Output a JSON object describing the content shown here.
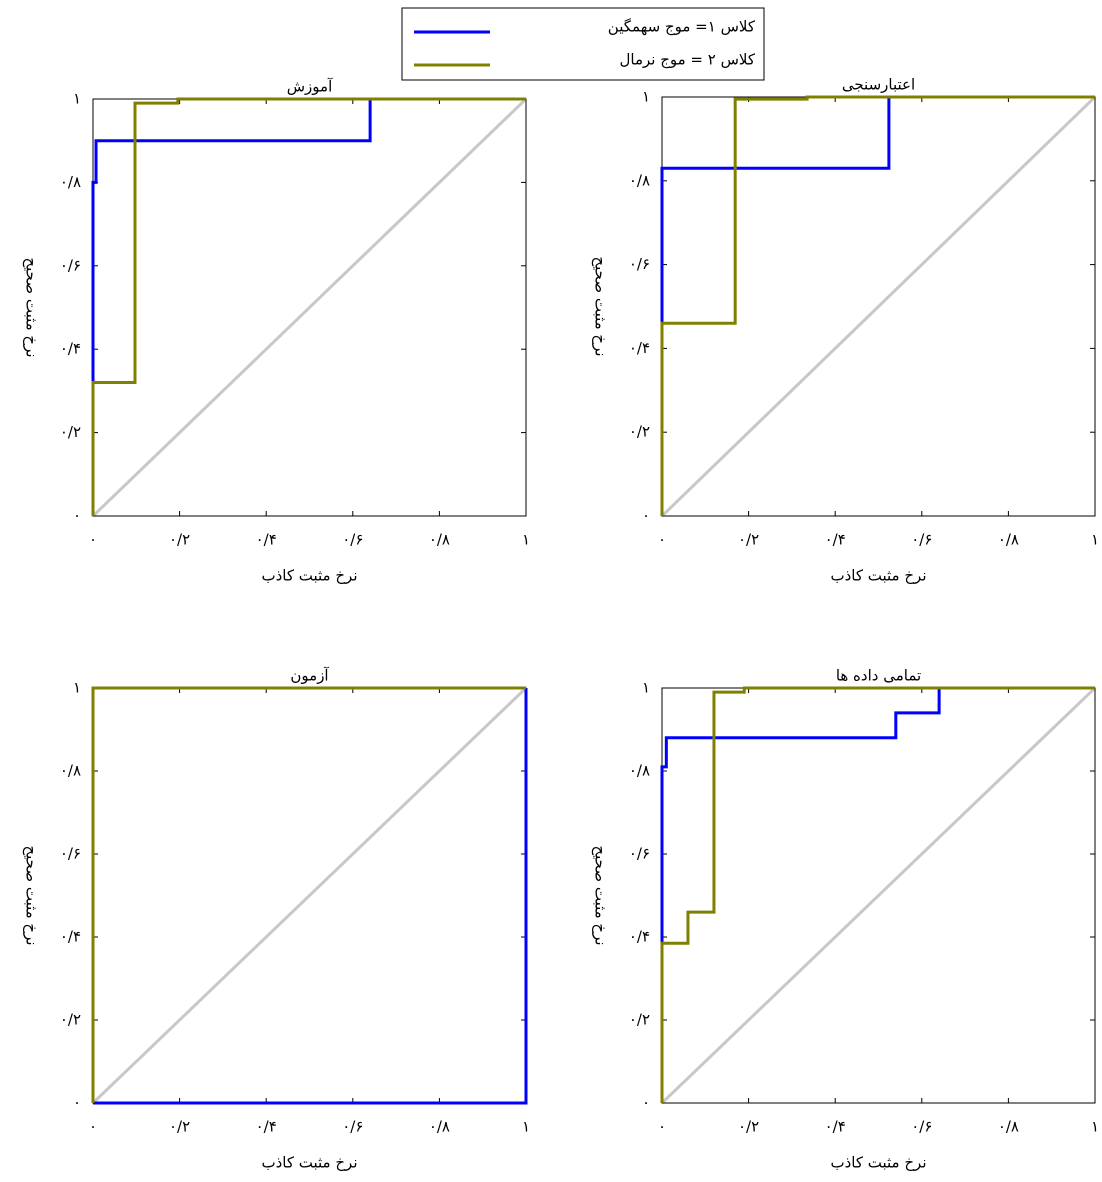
{
  "chart_data": [
    {
      "type": "line",
      "title": "آموزش",
      "xlabel": "نرخ مثبت کاذب",
      "ylabel": "نرخ مثبت صحیح",
      "xlim": [
        0,
        1
      ],
      "ylim": [
        0,
        1
      ],
      "xticks": [
        {
          "value": 0,
          "label": "۰"
        },
        {
          "value": 0.2,
          "label": "۰/۲"
        },
        {
          "value": 0.4,
          "label": "۰/۴"
        },
        {
          "value": 0.6,
          "label": "۰/۶"
        },
        {
          "value": 0.8,
          "label": "۰/۸"
        },
        {
          "value": 1,
          "label": "۱"
        }
      ],
      "yticks": [
        {
          "value": 0,
          "label": "۰"
        },
        {
          "value": 0.2,
          "label": "۰/۲"
        },
        {
          "value": 0.4,
          "label": "۰/۴"
        },
        {
          "value": 0.6,
          "label": "۰/۶"
        },
        {
          "value": 0.8,
          "label": "۰/۸"
        },
        {
          "value": 1,
          "label": "۱"
        }
      ],
      "series": [
        {
          "name": "کلاس ۱= موج سهمگین",
          "color": "#0000ff",
          "x": [
            0,
            0,
            0.007,
            0.007,
            0.64,
            0.64,
            1
          ],
          "values": [
            0,
            0.8,
            0.8,
            0.9,
            0.9,
            1,
            1
          ]
        },
        {
          "name": "کلاس ۲ = موج نرمال",
          "color": "#808000",
          "x": [
            0,
            0,
            0.097,
            0.097,
            0.196,
            0.196,
            1
          ],
          "values": [
            0,
            0.32,
            0.32,
            0.99,
            0.99,
            1,
            1
          ]
        }
      ]
    },
    {
      "type": "line",
      "title": "اعتبارسنجی",
      "xlabel": "نرخ مثبت کاذب",
      "ylabel": "نرخ مثبت صحیح",
      "xlim": [
        0,
        1
      ],
      "ylim": [
        0,
        1
      ],
      "xticks": [
        {
          "value": 0,
          "label": "۰"
        },
        {
          "value": 0.2,
          "label": "۰/۲"
        },
        {
          "value": 0.4,
          "label": "۰/۴"
        },
        {
          "value": 0.6,
          "label": "۰/۶"
        },
        {
          "value": 0.8,
          "label": "۰/۸"
        },
        {
          "value": 1,
          "label": "۱"
        }
      ],
      "yticks": [
        {
          "value": 0,
          "label": "۰"
        },
        {
          "value": 0.2,
          "label": "۰/۲"
        },
        {
          "value": 0.4,
          "label": "۰/۴"
        },
        {
          "value": 0.6,
          "label": "۰/۶"
        },
        {
          "value": 0.8,
          "label": "۰/۸"
        },
        {
          "value": 1,
          "label": "۱"
        }
      ],
      "series": [
        {
          "color": "#0000ff",
          "x": [
            0,
            0,
            0.524,
            0.524,
            1
          ],
          "values": [
            0,
            0.83,
            0.83,
            1,
            1
          ]
        },
        {
          "color": "#808000",
          "x": [
            0,
            0,
            0.169,
            0.169,
            0.335,
            0.335,
            1
          ],
          "values": [
            0,
            0.46,
            0.46,
            0.995,
            0.995,
            1,
            1
          ]
        }
      ]
    },
    {
      "type": "line",
      "title": "آزمون",
      "xlabel": "نرخ مثبت کاذب",
      "ylabel": "نرخ مثبت صحیح",
      "xlim": [
        0,
        1
      ],
      "ylim": [
        0,
        1
      ],
      "xticks": [
        {
          "value": 0,
          "label": "۰"
        },
        {
          "value": 0.2,
          "label": "۰/۲"
        },
        {
          "value": 0.4,
          "label": "۰/۴"
        },
        {
          "value": 0.6,
          "label": "۰/۶"
        },
        {
          "value": 0.8,
          "label": "۰/۸"
        },
        {
          "value": 1,
          "label": "۱"
        }
      ],
      "yticks": [
        {
          "value": 0,
          "label": "۰"
        },
        {
          "value": 0.2,
          "label": "۰/۲"
        },
        {
          "value": 0.4,
          "label": "۰/۴"
        },
        {
          "value": 0.6,
          "label": "۰/۶"
        },
        {
          "value": 0.8,
          "label": "۰/۸"
        },
        {
          "value": 1,
          "label": "۱"
        }
      ],
      "series": [
        {
          "color": "#0000ff",
          "x": [
            0,
            1,
            1
          ],
          "values": [
            0,
            0,
            1
          ]
        },
        {
          "color": "#808000",
          "x": [
            0,
            0,
            1
          ],
          "values": [
            0,
            1,
            1
          ]
        }
      ]
    },
    {
      "type": "line",
      "title": "تمامی داده ها",
      "xlabel": "نرخ مثبت کاذب",
      "ylabel": "نرخ مثبت صحیح",
      "xlim": [
        0,
        1
      ],
      "ylim": [
        0,
        1
      ],
      "xticks": [
        {
          "value": 0,
          "label": "۰"
        },
        {
          "value": 0.2,
          "label": "۰/۲"
        },
        {
          "value": 0.4,
          "label": "۰/۴"
        },
        {
          "value": 0.6,
          "label": "۰/۶"
        },
        {
          "value": 0.8,
          "label": "۰/۸"
        },
        {
          "value": 1,
          "label": "۱"
        }
      ],
      "yticks": [
        {
          "value": 0,
          "label": "۰"
        },
        {
          "value": 0.2,
          "label": "۰/۲"
        },
        {
          "value": 0.4,
          "label": "۰/۴"
        },
        {
          "value": 0.6,
          "label": "۰/۶"
        },
        {
          "value": 0.8,
          "label": "۰/۸"
        },
        {
          "value": 1,
          "label": "۱"
        }
      ],
      "series": [
        {
          "color": "#0000ff",
          "x": [
            0,
            0,
            0.01,
            0.01,
            0.54,
            0.54,
            0.64,
            0.64,
            1
          ],
          "values": [
            0,
            0.81,
            0.81,
            0.88,
            0.88,
            0.94,
            0.94,
            1,
            1
          ]
        },
        {
          "color": "#808000",
          "x": [
            0,
            0,
            0.06,
            0.06,
            0.12,
            0.12,
            0.19,
            0.19,
            1
          ],
          "values": [
            0,
            0.385,
            0.385,
            0.46,
            0.46,
            0.99,
            0.99,
            1,
            1
          ]
        }
      ]
    }
  ]
}
